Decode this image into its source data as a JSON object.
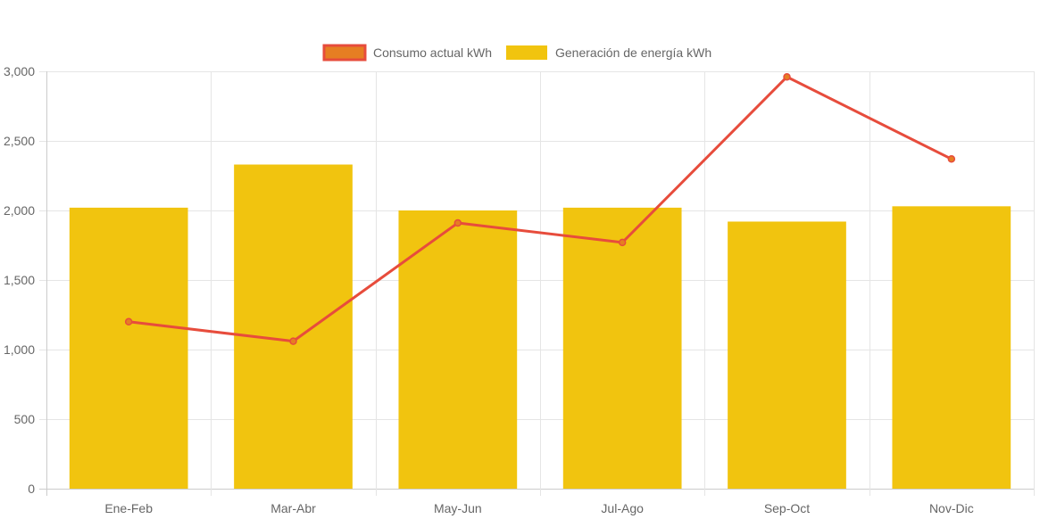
{
  "chart_data": {
    "type": "bar",
    "categories": [
      "Ene-Feb",
      "Mar-Abr",
      "May-Jun",
      "Jul-Ago",
      "Sep-Oct",
      "Nov-Dic"
    ],
    "series": [
      {
        "name": "Consumo actual kWh",
        "kind": "line",
        "values": [
          1200,
          1060,
          1910,
          1770,
          2960,
          2370
        ],
        "color": "#e74c3c",
        "point_color": "#e67e22"
      },
      {
        "name": "Generación de energía kWh",
        "kind": "bar",
        "values": [
          2020,
          2330,
          2000,
          2020,
          1920,
          2030
        ],
        "color": "#f1c40f"
      }
    ],
    "ylim": [
      0,
      3000
    ],
    "yticks": [
      "0",
      "500",
      "1,000",
      "1,500",
      "2,000",
      "2,500",
      "3,000"
    ],
    "ytick_values": [
      0,
      500,
      1000,
      1500,
      2000,
      2500,
      3000
    ],
    "grid": true,
    "legend_position": "top-center",
    "grid_color": "#e5e5e5",
    "axis_color": "#cccccc"
  }
}
